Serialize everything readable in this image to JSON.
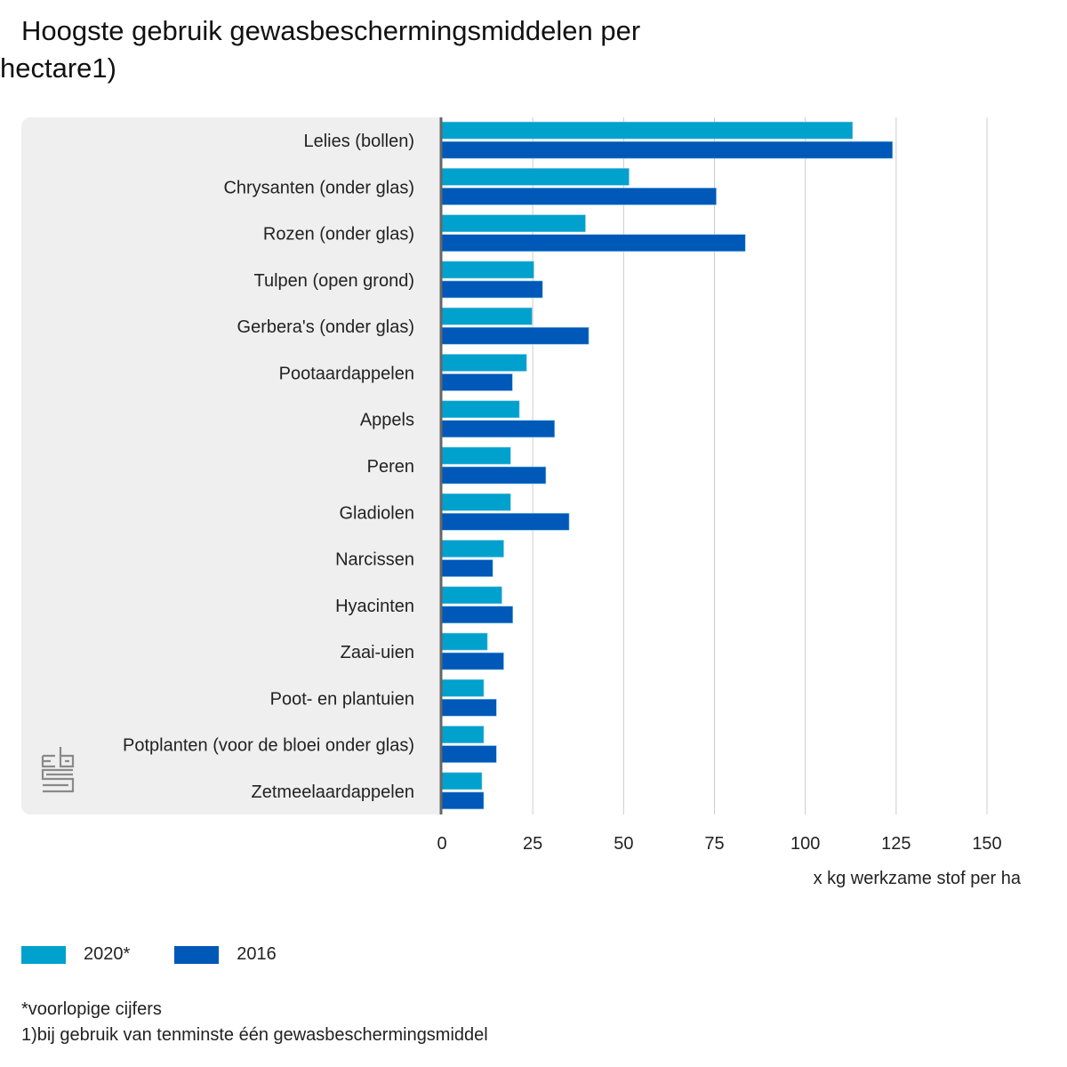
{
  "title": "Hoogste gebruik gewasbeschermingsmiddelen per hectare1)",
  "colors": {
    "series_2020": "#00a1cd",
    "series_2016": "#0058b8",
    "panel": "#efefef",
    "axis": "#666666",
    "grid": "#cccccc"
  },
  "logo": {
    "name": "cbs-logo",
    "text": "cbs"
  },
  "footnotes": [
    "*voorlopige cijfers",
    "1)bij gebruik van tenminste één gewasbeschermingsmiddel"
  ],
  "chart_data": {
    "type": "bar",
    "orientation": "horizontal",
    "title": "Hoogste gebruik gewasbeschermingsmiddelen per hectare1)",
    "xlabel": "x kg werkzame stof per ha",
    "ylabel": "",
    "xlim": [
      0,
      150
    ],
    "xticks": [
      0,
      25,
      50,
      75,
      100,
      125,
      150
    ],
    "grid": true,
    "legend_position": "bottom-left",
    "categories": [
      "Lelies (bollen)",
      "Chrysanten (onder glas)",
      "Rozen (onder glas)",
      "Tulpen (open grond)",
      "Gerbera's (onder glas)",
      "Pootaardappelen",
      "Appels",
      "Peren",
      "Gladiolen",
      "Narcissen",
      "Hyacinten",
      "Zaai-uien",
      "Poot- en plantuien",
      "Potplanten (voor de bloei onder glas)",
      "Zetmeelaardappelen"
    ],
    "series": [
      {
        "name": "2020*",
        "color": "#00a1cd",
        "values": [
          113,
          51.5,
          39.5,
          25.3,
          24.8,
          23.3,
          21.3,
          18.9,
          18.9,
          17,
          16.5,
          12.5,
          11.5,
          11.5,
          11
        ]
      },
      {
        "name": "2016",
        "color": "#0058b8",
        "values": [
          124,
          75.5,
          83.5,
          27.7,
          40.4,
          19.4,
          31,
          28.6,
          35,
          14,
          19.5,
          17,
          15,
          15,
          11.5
        ]
      }
    ]
  }
}
